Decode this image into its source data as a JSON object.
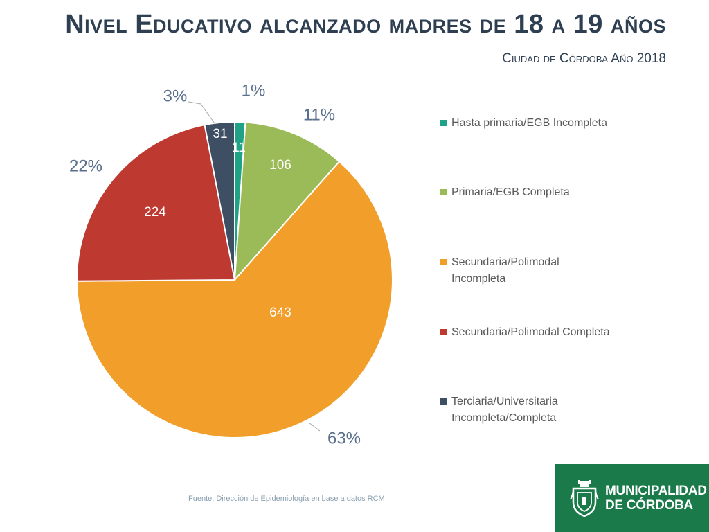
{
  "header": {
    "title": "Nivel Educativo alcanzado madres de 18 a 19 años",
    "subtitle": "Ciudad de Córdoba Año 2018"
  },
  "footer": {
    "source": "Fuente: Dirección de Epidemiología en base a datos RCM"
  },
  "logo": {
    "line1": "MUNICIPALIDAD",
    "line2": "DE CÓRDOBA",
    "color": "#1a7a4a"
  },
  "chart_data": {
    "type": "pie",
    "title": "Nivel Educativo alcanzado madres de 18 a 19 años",
    "subtitle": "Ciudad de Córdoba Año 2018",
    "legend_position": "right",
    "categories": [
      "Hasta primaria/EGB Incompleta",
      "Primaria/EGB Completa",
      "Secundaria/Polimodal Incompleta",
      "Secundaria/Polimodal Completa",
      "Terciaria/Universitaria Incompleta/Completa"
    ],
    "values": [
      11,
      106,
      643,
      224,
      31
    ],
    "percent_labels": [
      "1%",
      "11%",
      "63%",
      "22%",
      "3%"
    ],
    "colors": [
      "#1fa286",
      "#9bbb59",
      "#f19e2b",
      "#be3a31",
      "#3e4f63"
    ]
  }
}
